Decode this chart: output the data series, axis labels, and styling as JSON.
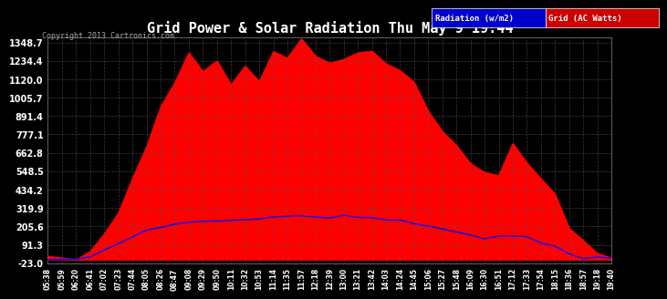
{
  "title": "Grid Power & Solar Radiation Thu May 9 19:44",
  "copyright": "Copyright 2013 Cartronics.com",
  "legend_radiation": "Radiation (w/m2)",
  "legend_grid": "Grid (AC Watts)",
  "ymin": -23.0,
  "ymax": 1348.7,
  "yticks": [
    1348.7,
    1234.4,
    1120.0,
    1005.7,
    891.4,
    777.1,
    662.8,
    548.5,
    434.2,
    319.9,
    205.6,
    91.3,
    -23.0
  ],
  "bg_color": "#000000",
  "plot_bg_color": "#000000",
  "grid_color": "#555555",
  "radiation_color": "#0000ff",
  "grid_power_color": "#ff0000",
  "title_color": "#ffffff",
  "tick_label_color": "#ffffff",
  "x_tick_interval": 3,
  "xtick_labels": [
    "05:38",
    "05:59",
    "06:20",
    "06:41",
    "07:02",
    "07:23",
    "07:44",
    "08:05",
    "08:26",
    "08:47",
    "09:08",
    "09:29",
    "09:50",
    "10:11",
    "10:32",
    "10:53",
    "11:14",
    "11:35",
    "11:57",
    "12:18",
    "12:39",
    "13:00",
    "13:21",
    "13:42",
    "14:03",
    "14:24",
    "14:45",
    "15:06",
    "15:27",
    "15:48",
    "16:09",
    "16:30",
    "16:51",
    "17:12",
    "17:33",
    "17:54",
    "18:15",
    "18:36",
    "18:57",
    "19:18",
    "19:40"
  ]
}
